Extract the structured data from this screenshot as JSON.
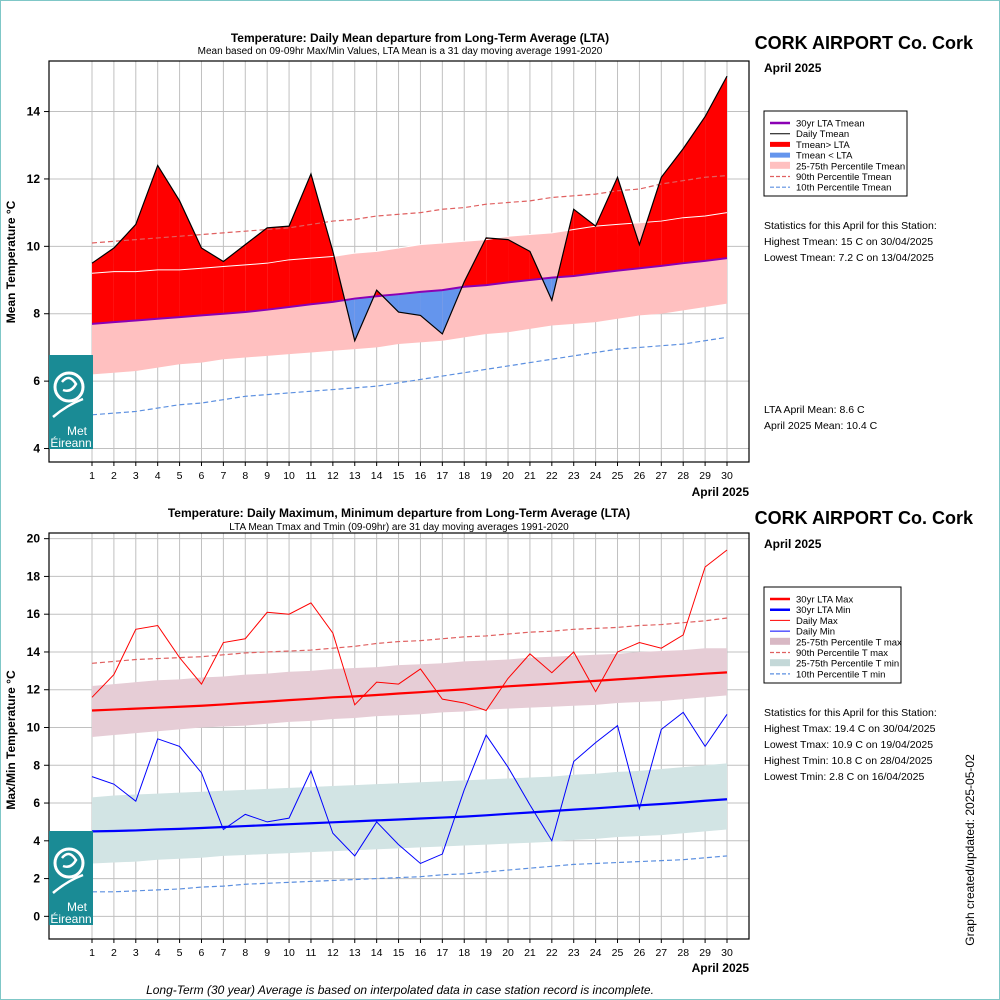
{
  "footer_note": "Long-Term (30 year) Average is based on interpolated data in case station record is incomplete.",
  "updated_label": "Graph created/updated:  2025-05-02",
  "logo": {
    "line1": "Met",
    "line2": "Éireann",
    "color": "#1a8b95"
  },
  "panels": {
    "top": {
      "station": "CORK AIRPORT Co. Cork",
      "month": "April 2025",
      "legend": [
        "30yr LTA Tmean",
        "Daily Tmean",
        "Tmean> LTA",
        "Tmean < LTA",
        "25-75th Percentile Tmean",
        "90th Percentile Tmean",
        "10th Percentile Tmean"
      ],
      "stats_title": "Statistics for this April for this Station:",
      "stats": [
        "Highest Tmean: 15 C on 30/04/2025",
        "Lowest Tmean: 7.2 C on 13/04/2025"
      ],
      "summary": [
        "LTA April Mean: 8.6 C",
        "April 2025 Mean: 10.4 C"
      ]
    },
    "bottom": {
      "station": "CORK AIRPORT Co. Cork",
      "month": "April 2025",
      "legend": [
        "30yr LTA Max",
        "30yr LTA Min",
        "Daily Max",
        "Daily Min",
        "25-75th Percentile T max",
        "90th Percentile T max",
        "25-75th Percentile T min",
        "10th Percentile T min"
      ],
      "stats_title": "Statistics for this April for this Station:",
      "stats": [
        "Highest Tmax: 19.4 C on 30/04/2025",
        "Lowest Tmax: 10.9 C on 19/04/2025",
        "Highest Tmin: 10.8 C on 28/04/2025",
        "Lowest Tmin: 2.8 C on 16/04/2025"
      ]
    }
  },
  "colors": {
    "above": "#ff0000",
    "below": "#6495ed",
    "lta_mean": "#8b00b4",
    "p90": "#e06060",
    "p10": "#5b8fe0",
    "band_mean": "#ffc0c0",
    "max": "#ff0000",
    "min": "#0000ff",
    "band_max": "#e6cdd6",
    "band_min": "#d2e4e4"
  },
  "chart_data": [
    {
      "type": "area",
      "title": "Temperature: Daily Mean departure from Long-Term Average (LTA)",
      "subtitle": "Mean based on 09-09hr Max/Min Values, LTA Mean is a 31 day moving average 1991-2020",
      "ylabel": "Mean Temperature °C",
      "xlabel": "April 2025",
      "ylim": [
        3.6,
        15.5
      ],
      "yticks": [
        4,
        6,
        8,
        10,
        12,
        14
      ],
      "x": [
        1,
        2,
        3,
        4,
        5,
        6,
        7,
        8,
        9,
        10,
        11,
        12,
        13,
        14,
        15,
        16,
        17,
        18,
        19,
        20,
        21,
        22,
        23,
        24,
        25,
        26,
        27,
        28,
        29,
        30
      ],
      "series": [
        {
          "name": "Daily Tmean",
          "values": [
            9.5,
            9.95,
            10.65,
            12.4,
            11.35,
            9.95,
            9.55,
            10.05,
            10.55,
            10.6,
            12.15,
            9.85,
            7.2,
            8.7,
            8.05,
            7.95,
            7.4,
            8.95,
            10.25,
            10.2,
            9.85,
            8.4,
            11.1,
            10.6,
            12.05,
            10.05,
            12.05,
            12.9,
            13.85,
            15.05
          ]
        },
        {
          "name": "30yr LTA Tmean",
          "values": [
            7.7,
            7.75,
            7.8,
            7.85,
            7.9,
            7.95,
            8.0,
            8.05,
            8.12,
            8.2,
            8.28,
            8.35,
            8.45,
            8.52,
            8.58,
            8.65,
            8.7,
            8.8,
            8.85,
            8.93,
            9.0,
            9.07,
            9.12,
            9.2,
            9.28,
            9.35,
            9.42,
            9.5,
            9.57,
            9.65
          ]
        },
        {
          "name": "90th Percentile Tmean",
          "values": [
            10.1,
            10.15,
            10.2,
            10.25,
            10.3,
            10.35,
            10.4,
            10.45,
            10.5,
            10.55,
            10.65,
            10.75,
            10.8,
            10.9,
            10.95,
            11.0,
            11.1,
            11.15,
            11.25,
            11.3,
            11.35,
            11.45,
            11.5,
            11.55,
            11.65,
            11.7,
            11.85,
            11.95,
            12.05,
            12.1
          ]
        },
        {
          "name": "10th Percentile Tmean",
          "values": [
            5.0,
            5.05,
            5.1,
            5.2,
            5.3,
            5.35,
            5.45,
            5.55,
            5.6,
            5.65,
            5.7,
            5.75,
            5.8,
            5.85,
            5.95,
            6.05,
            6.15,
            6.25,
            6.35,
            6.45,
            6.55,
            6.65,
            6.75,
            6.85,
            6.95,
            7.0,
            7.05,
            7.1,
            7.2,
            7.3
          ]
        },
        {
          "name": "25th Percentile Tmean",
          "values": [
            6.2,
            6.25,
            6.3,
            6.4,
            6.5,
            6.55,
            6.65,
            6.7,
            6.75,
            6.8,
            6.85,
            6.9,
            6.95,
            7.0,
            7.1,
            7.15,
            7.2,
            7.3,
            7.4,
            7.45,
            7.55,
            7.65,
            7.7,
            7.75,
            7.85,
            7.95,
            8.0,
            8.1,
            8.2,
            8.3
          ]
        },
        {
          "name": "75th Percentile Tmean",
          "values": [
            9.2,
            9.25,
            9.25,
            9.3,
            9.3,
            9.35,
            9.4,
            9.45,
            9.5,
            9.6,
            9.65,
            9.7,
            9.8,
            9.85,
            9.95,
            10.05,
            10.1,
            10.15,
            10.2,
            10.3,
            10.35,
            10.4,
            10.5,
            10.6,
            10.65,
            10.7,
            10.75,
            10.85,
            10.9,
            11.0
          ]
        }
      ]
    },
    {
      "type": "line",
      "title": "Temperature: Daily Maximum, Minimum departure from Long-Term Average (LTA)",
      "subtitle": "LTA Mean Tmax and Tmin (09-09hr) are 31 day moving averages 1991-2020",
      "ylabel": "Max/Min Temperature °C",
      "xlabel": "April 2025",
      "ylim": [
        -1.2,
        20.3
      ],
      "yticks": [
        0,
        2,
        4,
        6,
        8,
        10,
        12,
        14,
        16,
        18,
        20
      ],
      "x": [
        1,
        2,
        3,
        4,
        5,
        6,
        7,
        8,
        9,
        10,
        11,
        12,
        13,
        14,
        15,
        16,
        17,
        18,
        19,
        20,
        21,
        22,
        23,
        24,
        25,
        26,
        27,
        28,
        29,
        30
      ],
      "series": [
        {
          "name": "Daily Max",
          "values": [
            11.6,
            12.8,
            15.2,
            15.4,
            13.7,
            12.3,
            14.5,
            14.7,
            16.1,
            16.0,
            16.6,
            15.0,
            11.2,
            12.4,
            12.3,
            13.1,
            11.5,
            11.3,
            10.9,
            12.6,
            13.9,
            12.9,
            14.0,
            11.9,
            14.0,
            14.5,
            14.2,
            14.9,
            18.5,
            19.4
          ]
        },
        {
          "name": "Daily Min",
          "values": [
            7.4,
            7.0,
            6.1,
            9.4,
            9.0,
            7.6,
            4.6,
            5.4,
            5.0,
            5.2,
            7.7,
            4.4,
            3.2,
            5.0,
            3.8,
            2.8,
            3.3,
            6.7,
            9.6,
            7.9,
            5.9,
            4.0,
            8.2,
            9.2,
            10.1,
            5.7,
            9.9,
            10.8,
            9.0,
            10.7
          ]
        },
        {
          "name": "30yr LTA Max",
          "values": [
            10.9,
            10.95,
            11.0,
            11.05,
            11.1,
            11.15,
            11.22,
            11.3,
            11.37,
            11.45,
            11.52,
            11.6,
            11.65,
            11.72,
            11.8,
            11.87,
            11.95,
            12.02,
            12.1,
            12.18,
            12.25,
            12.32,
            12.4,
            12.47,
            12.55,
            12.62,
            12.7,
            12.77,
            12.85,
            12.92
          ]
        },
        {
          "name": "30yr LTA Min",
          "values": [
            4.5,
            4.52,
            4.55,
            4.6,
            4.63,
            4.68,
            4.73,
            4.78,
            4.83,
            4.88,
            4.93,
            4.98,
            5.03,
            5.08,
            5.13,
            5.18,
            5.23,
            5.28,
            5.35,
            5.43,
            5.5,
            5.58,
            5.65,
            5.72,
            5.8,
            5.88,
            5.95,
            6.03,
            6.12,
            6.2
          ]
        },
        {
          "name": "90th Percentile T max",
          "values": [
            13.4,
            13.5,
            13.6,
            13.65,
            13.7,
            13.75,
            13.85,
            13.95,
            14.0,
            14.05,
            14.1,
            14.2,
            14.3,
            14.45,
            14.55,
            14.6,
            14.7,
            14.8,
            14.85,
            14.95,
            15.05,
            15.1,
            15.2,
            15.25,
            15.3,
            15.4,
            15.45,
            15.55,
            15.65,
            15.8
          ]
        },
        {
          "name": "10th Percentile T min",
          "values": [
            1.3,
            1.3,
            1.35,
            1.4,
            1.45,
            1.55,
            1.6,
            1.7,
            1.75,
            1.8,
            1.85,
            1.9,
            1.95,
            2.0,
            2.05,
            2.1,
            2.2,
            2.25,
            2.35,
            2.45,
            2.55,
            2.65,
            2.75,
            2.8,
            2.85,
            2.9,
            2.95,
            3.0,
            3.1,
            3.2
          ]
        },
        {
          "name": "25th Percentile T max",
          "values": [
            9.5,
            9.6,
            9.7,
            9.8,
            9.9,
            10.0,
            10.05,
            10.1,
            10.2,
            10.3,
            10.35,
            10.45,
            10.5,
            10.6,
            10.65,
            10.7,
            10.8,
            10.85,
            10.95,
            11.0,
            11.05,
            11.1,
            11.15,
            11.2,
            11.3,
            11.35,
            11.4,
            11.5,
            11.6,
            11.7
          ]
        },
        {
          "name": "75th Percentile T max",
          "values": [
            12.2,
            12.3,
            12.4,
            12.5,
            12.55,
            12.65,
            12.7,
            12.8,
            12.85,
            12.95,
            13.0,
            13.1,
            13.15,
            13.2,
            13.3,
            13.35,
            13.4,
            13.5,
            13.55,
            13.6,
            13.7,
            13.75,
            13.8,
            13.85,
            13.9,
            14.0,
            14.05,
            14.1,
            14.2,
            14.2
          ]
        },
        {
          "name": "25th Percentile T min",
          "values": [
            2.8,
            2.85,
            2.9,
            3.0,
            3.05,
            3.1,
            3.2,
            3.25,
            3.3,
            3.35,
            3.4,
            3.45,
            3.5,
            3.55,
            3.6,
            3.65,
            3.7,
            3.75,
            3.8,
            3.85,
            3.9,
            3.95,
            4.05,
            4.1,
            4.2,
            4.25,
            4.3,
            4.4,
            4.5,
            4.6
          ]
        },
        {
          "name": "75th Percentile T min",
          "values": [
            6.3,
            6.4,
            6.45,
            6.5,
            6.55,
            6.6,
            6.65,
            6.7,
            6.75,
            6.8,
            6.85,
            6.9,
            6.95,
            7.0,
            7.05,
            7.1,
            7.15,
            7.2,
            7.25,
            7.3,
            7.35,
            7.4,
            7.5,
            7.55,
            7.65,
            7.7,
            7.8,
            7.9,
            8.0,
            8.1
          ]
        }
      ]
    }
  ]
}
